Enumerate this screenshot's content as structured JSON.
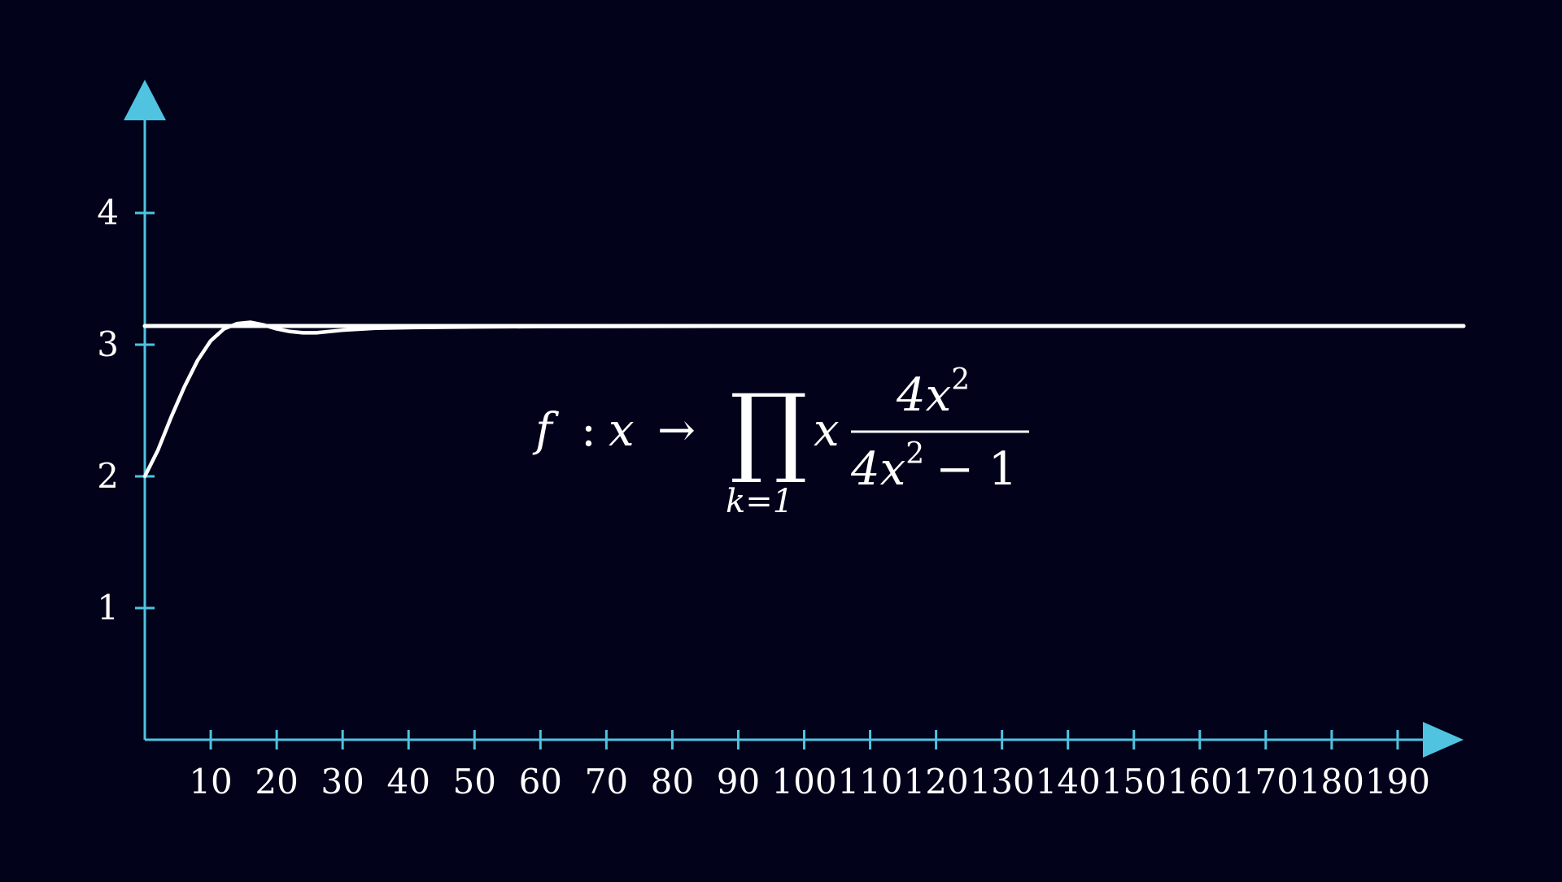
{
  "chart_data": {
    "type": "line",
    "title": "",
    "xlabel": "",
    "ylabel": "",
    "xlim": [
      0,
      200
    ],
    "ylim": [
      0,
      4.5
    ],
    "x_ticks": [
      10,
      20,
      30,
      40,
      50,
      60,
      70,
      80,
      90,
      100,
      110,
      120,
      130,
      140,
      150,
      160,
      170,
      180,
      190
    ],
    "x_tick_labels": [
      "10",
      "20",
      "30",
      "40",
      "50",
      "60",
      "70",
      "80",
      "90",
      "100",
      "110",
      "120",
      "130",
      "140",
      "150",
      "160",
      "170",
      "180",
      "190"
    ],
    "y_ticks": [
      1,
      2,
      3,
      4
    ],
    "y_tick_labels": [
      "1",
      "2",
      "3",
      "4"
    ],
    "grid": false,
    "axis_color": "#4fc3e0",
    "line_color": "#ffffff",
    "background": "#02031a",
    "series": [
      {
        "kind": "curve",
        "x": [
          0,
          2,
          4,
          6,
          8,
          10,
          12,
          14,
          16,
          18,
          20,
          22,
          24,
          26,
          28,
          30,
          35,
          40,
          50,
          60,
          80,
          100,
          120,
          140,
          160,
          180,
          200
        ],
        "values": [
          2.0,
          2.2,
          2.45,
          2.68,
          2.88,
          3.03,
          3.12,
          3.16,
          3.17,
          3.15,
          3.12,
          3.1,
          3.09,
          3.09,
          3.1,
          3.11,
          3.125,
          3.13,
          3.135,
          3.138,
          3.14,
          3.141,
          3.141,
          3.1415,
          3.1415,
          3.1416,
          3.1416
        ]
      },
      {
        "kind": "constant",
        "x": [
          0,
          200
        ],
        "values": [
          3.1416,
          3.1416
        ]
      }
    ]
  },
  "formula": {
    "f": "f",
    "colon": ":",
    "x": "x",
    "arrow": "→",
    "product": "∏",
    "lower_index": "k=1",
    "factor": "x",
    "numerator_base": "4x",
    "numerator_exp": "2",
    "denominator_base": "4x",
    "denominator_exp": "2",
    "denominator_rest": "− 1"
  }
}
